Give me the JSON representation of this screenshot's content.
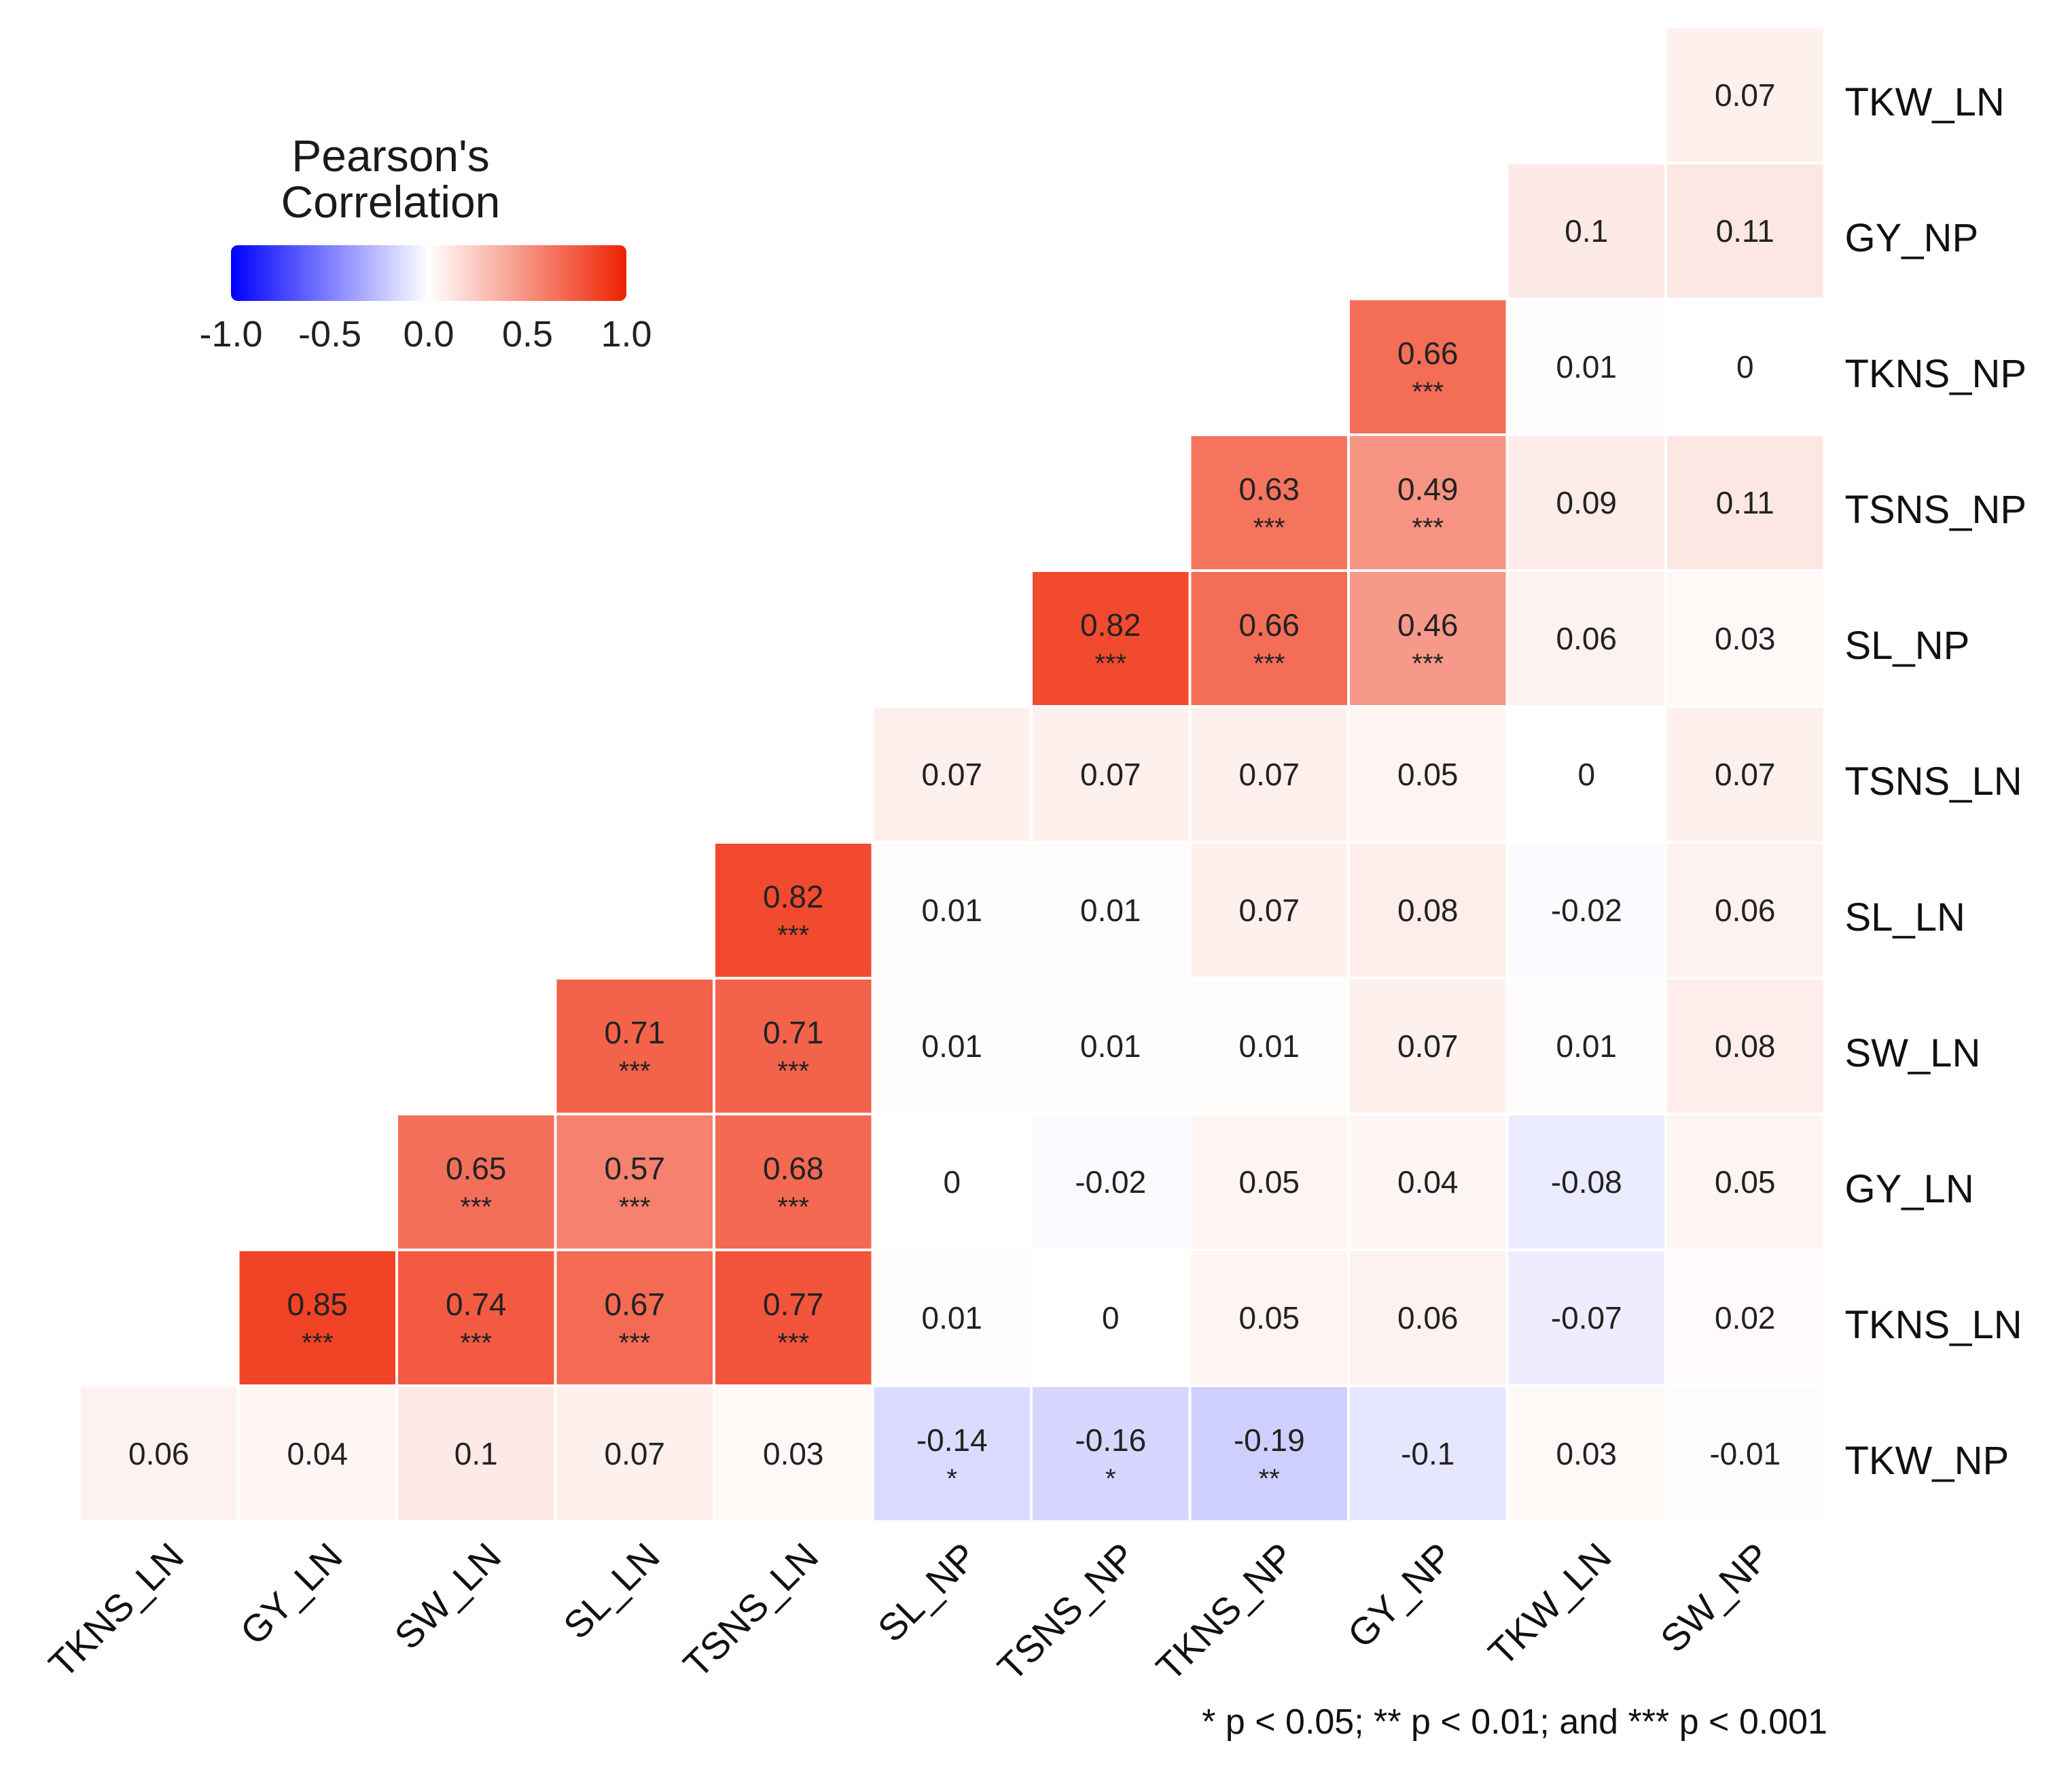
{
  "chart_data": {
    "type": "heatmap",
    "title": "",
    "legend": {
      "title_line1": "Pearson's",
      "title_line2": "Correlation",
      "ticks": [
        "-1.0",
        "-0.5",
        "0.0",
        "0.5",
        "1.0"
      ],
      "range": [
        -1.0,
        1.0
      ],
      "low_color": "#0000ff",
      "mid_color": "#ffffff",
      "high_color": "#ee2200",
      "placement": "top-left"
    },
    "x_labels": [
      "TKNS_LN",
      "GY_LN",
      "SW_LN",
      "SL_LN",
      "TSNS_LN",
      "SL_NP",
      "TSNS_NP",
      "TKNS_NP",
      "GY_NP",
      "TKW_LN",
      "SW_NP"
    ],
    "y_labels": [
      "TKW_LN",
      "GY_NP",
      "TKNS_NP",
      "TSNS_NP",
      "SL_NP",
      "TSNS_LN",
      "SL_LN",
      "SW_LN",
      "GY_LN",
      "TKNS_LN",
      "TKW_NP"
    ],
    "cells": [
      {
        "row": 0,
        "col": 10,
        "value": "0.07",
        "sig": ""
      },
      {
        "row": 1,
        "col": 9,
        "value": "0.1",
        "sig": ""
      },
      {
        "row": 1,
        "col": 10,
        "value": "0.11",
        "sig": ""
      },
      {
        "row": 2,
        "col": 8,
        "value": "0.66",
        "sig": "***"
      },
      {
        "row": 2,
        "col": 9,
        "value": "0.01",
        "sig": ""
      },
      {
        "row": 2,
        "col": 10,
        "value": "0",
        "sig": ""
      },
      {
        "row": 3,
        "col": 7,
        "value": "0.63",
        "sig": "***"
      },
      {
        "row": 3,
        "col": 8,
        "value": "0.49",
        "sig": "***"
      },
      {
        "row": 3,
        "col": 9,
        "value": "0.09",
        "sig": ""
      },
      {
        "row": 3,
        "col": 10,
        "value": "0.11",
        "sig": ""
      },
      {
        "row": 4,
        "col": 6,
        "value": "0.82",
        "sig": "***"
      },
      {
        "row": 4,
        "col": 7,
        "value": "0.66",
        "sig": "***"
      },
      {
        "row": 4,
        "col": 8,
        "value": "0.46",
        "sig": "***"
      },
      {
        "row": 4,
        "col": 9,
        "value": "0.06",
        "sig": ""
      },
      {
        "row": 4,
        "col": 10,
        "value": "0.03",
        "sig": ""
      },
      {
        "row": 5,
        "col": 5,
        "value": "0.07",
        "sig": ""
      },
      {
        "row": 5,
        "col": 6,
        "value": "0.07",
        "sig": ""
      },
      {
        "row": 5,
        "col": 7,
        "value": "0.07",
        "sig": ""
      },
      {
        "row": 5,
        "col": 8,
        "value": "0.05",
        "sig": ""
      },
      {
        "row": 5,
        "col": 9,
        "value": "0",
        "sig": ""
      },
      {
        "row": 5,
        "col": 10,
        "value": "0.07",
        "sig": ""
      },
      {
        "row": 6,
        "col": 4,
        "value": "0.82",
        "sig": "***"
      },
      {
        "row": 6,
        "col": 5,
        "value": "0.01",
        "sig": ""
      },
      {
        "row": 6,
        "col": 6,
        "value": "0.01",
        "sig": ""
      },
      {
        "row": 6,
        "col": 7,
        "value": "0.07",
        "sig": ""
      },
      {
        "row": 6,
        "col": 8,
        "value": "0.08",
        "sig": ""
      },
      {
        "row": 6,
        "col": 9,
        "value": "-0.02",
        "sig": ""
      },
      {
        "row": 6,
        "col": 10,
        "value": "0.06",
        "sig": ""
      },
      {
        "row": 7,
        "col": 3,
        "value": "0.71",
        "sig": "***"
      },
      {
        "row": 7,
        "col": 4,
        "value": "0.71",
        "sig": "***"
      },
      {
        "row": 7,
        "col": 5,
        "value": "0.01",
        "sig": ""
      },
      {
        "row": 7,
        "col": 6,
        "value": "0.01",
        "sig": ""
      },
      {
        "row": 7,
        "col": 7,
        "value": "0.01",
        "sig": ""
      },
      {
        "row": 7,
        "col": 8,
        "value": "0.07",
        "sig": ""
      },
      {
        "row": 7,
        "col": 9,
        "value": "0.01",
        "sig": ""
      },
      {
        "row": 7,
        "col": 10,
        "value": "0.08",
        "sig": ""
      },
      {
        "row": 8,
        "col": 2,
        "value": "0.65",
        "sig": "***"
      },
      {
        "row": 8,
        "col": 3,
        "value": "0.57",
        "sig": "***"
      },
      {
        "row": 8,
        "col": 4,
        "value": "0.68",
        "sig": "***"
      },
      {
        "row": 8,
        "col": 5,
        "value": "0",
        "sig": ""
      },
      {
        "row": 8,
        "col": 6,
        "value": "-0.02",
        "sig": ""
      },
      {
        "row": 8,
        "col": 7,
        "value": "0.05",
        "sig": ""
      },
      {
        "row": 8,
        "col": 8,
        "value": "0.04",
        "sig": ""
      },
      {
        "row": 8,
        "col": 9,
        "value": "-0.08",
        "sig": ""
      },
      {
        "row": 8,
        "col": 10,
        "value": "0.05",
        "sig": ""
      },
      {
        "row": 9,
        "col": 1,
        "value": "0.85",
        "sig": "***"
      },
      {
        "row": 9,
        "col": 2,
        "value": "0.74",
        "sig": "***"
      },
      {
        "row": 9,
        "col": 3,
        "value": "0.67",
        "sig": "***"
      },
      {
        "row": 9,
        "col": 4,
        "value": "0.77",
        "sig": "***"
      },
      {
        "row": 9,
        "col": 5,
        "value": "0.01",
        "sig": ""
      },
      {
        "row": 9,
        "col": 6,
        "value": "0",
        "sig": ""
      },
      {
        "row": 9,
        "col": 7,
        "value": "0.05",
        "sig": ""
      },
      {
        "row": 9,
        "col": 8,
        "value": "0.06",
        "sig": ""
      },
      {
        "row": 9,
        "col": 9,
        "value": "-0.07",
        "sig": ""
      },
      {
        "row": 9,
        "col": 10,
        "value": "0.02",
        "sig": ""
      },
      {
        "row": 10,
        "col": 0,
        "value": "0.06",
        "sig": ""
      },
      {
        "row": 10,
        "col": 1,
        "value": "0.04",
        "sig": ""
      },
      {
        "row": 10,
        "col": 2,
        "value": "0.1",
        "sig": ""
      },
      {
        "row": 10,
        "col": 3,
        "value": "0.07",
        "sig": ""
      },
      {
        "row": 10,
        "col": 4,
        "value": "0.03",
        "sig": ""
      },
      {
        "row": 10,
        "col": 5,
        "value": "-0.14",
        "sig": "*"
      },
      {
        "row": 10,
        "col": 6,
        "value": "-0.16",
        "sig": "*"
      },
      {
        "row": 10,
        "col": 7,
        "value": "-0.19",
        "sig": "**"
      },
      {
        "row": 10,
        "col": 8,
        "value": "-0.1",
        "sig": ""
      },
      {
        "row": 10,
        "col": 9,
        "value": "0.03",
        "sig": ""
      },
      {
        "row": 10,
        "col": 10,
        "value": "-0.01",
        "sig": ""
      }
    ],
    "footnote": "* p < 0.05; ** p < 0.01; and *** p < 0.001"
  }
}
